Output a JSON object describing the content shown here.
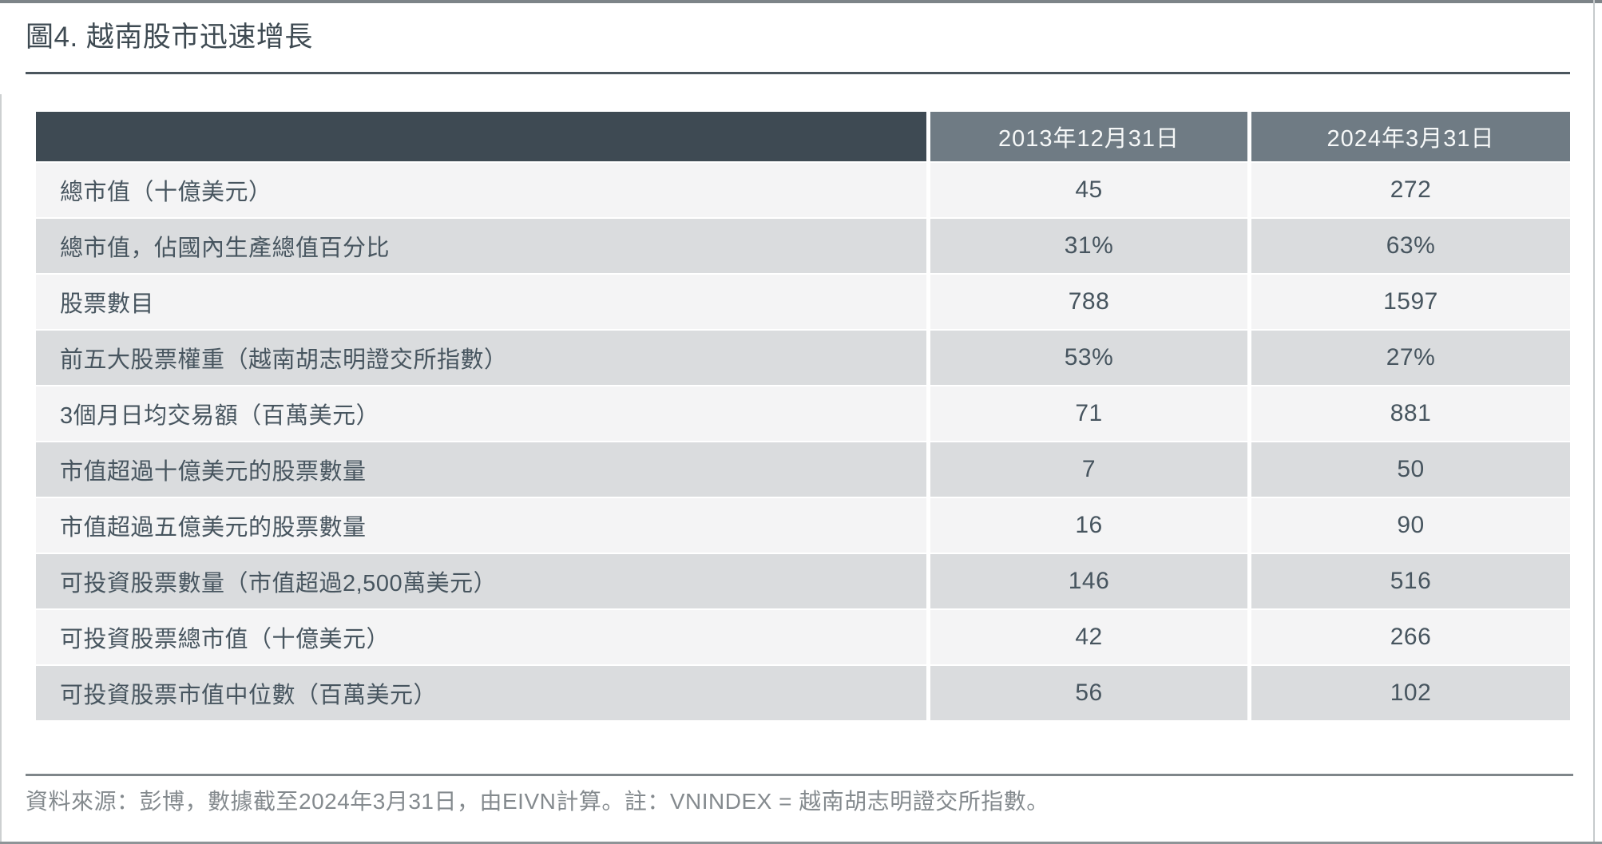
{
  "figure": {
    "title": "圖4. 越南股市迅速增長"
  },
  "colors": {
    "header_corner_bg": "#3e4a53",
    "header_bg": "#6f7b84",
    "row_light_bg": "#f4f4f5",
    "row_gray_bg": "#dadcde",
    "text_dark": "#47555f",
    "text_source": "#848a8e"
  },
  "chart_data": {
    "type": "table",
    "title": "圖4. 越南股市迅速增長",
    "columns": [
      "2013年12月31日",
      "2024年3月31日"
    ],
    "rows": [
      {
        "label": "總市值（十億美元）",
        "values": [
          "45",
          "272"
        ]
      },
      {
        "label": "總市值，佔國內生產總值百分比",
        "values": [
          "31%",
          "63%"
        ]
      },
      {
        "label": "股票數目",
        "values": [
          "788",
          "1597"
        ]
      },
      {
        "label": "前五大股票權重（越南胡志明證交所指數）",
        "values": [
          "53%",
          "27%"
        ]
      },
      {
        "label": "3個月日均交易額（百萬美元）",
        "values": [
          "71",
          "881"
        ]
      },
      {
        "label": "市值超過十億美元的股票數量",
        "values": [
          "7",
          "50"
        ]
      },
      {
        "label": "市值超過五億美元的股票數量",
        "values": [
          "16",
          "90"
        ]
      },
      {
        "label": "可投資股票數量（市值超過2,500萬美元）",
        "values": [
          "146",
          "516"
        ]
      },
      {
        "label": "可投資股票總市值（十億美元）",
        "values": [
          "42",
          "266"
        ]
      },
      {
        "label": "可投資股票市值中位數（百萬美元）",
        "values": [
          "56",
          "102"
        ]
      }
    ],
    "source_note": "資料來源：彭博，數據截至2024年3月31日，由EIVN計算。註：VNINDEX = 越南胡志明證交所指數。",
    "layout": {
      "legend": "none",
      "grid": "off"
    }
  }
}
